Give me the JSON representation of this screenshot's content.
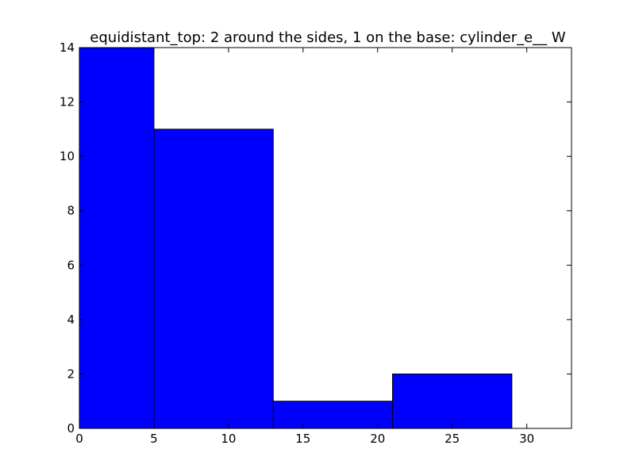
{
  "chart_data": {
    "type": "bar",
    "title": "equidistant_top: 2 around the sides, 1 on the base: cylinder_e__ W",
    "xlabel": "",
    "ylabel": "",
    "xlim": [
      0,
      33
    ],
    "ylim": [
      0,
      14
    ],
    "xticks": [
      0,
      5,
      10,
      15,
      20,
      25,
      30
    ],
    "yticks": [
      0,
      2,
      4,
      6,
      8,
      10,
      12,
      14
    ],
    "bins": [
      {
        "x0": 0,
        "x1": 5,
        "value": 14
      },
      {
        "x0": 5,
        "x1": 13,
        "value": 11
      },
      {
        "x0": 13,
        "x1": 21,
        "value": 1
      },
      {
        "x0": 21,
        "x1": 29,
        "value": 2
      }
    ],
    "bar_color": "#0000ff",
    "edge_color": "#000000",
    "grid": false
  }
}
